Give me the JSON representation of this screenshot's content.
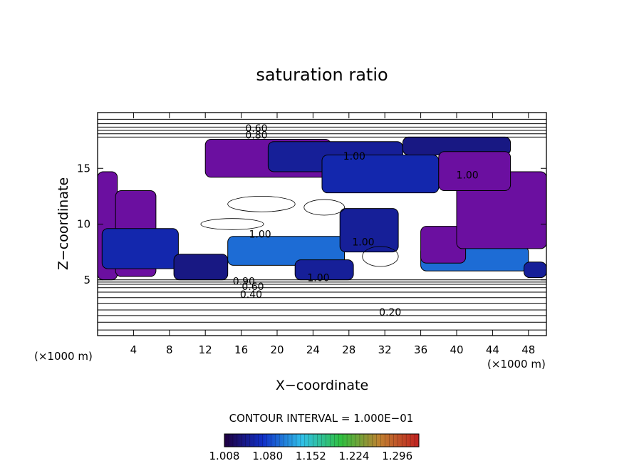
{
  "chart_data": {
    "type": "heatmap",
    "title": "saturation ratio",
    "xlabel": "X−coordinate",
    "ylabel": "Z−coordinate",
    "x_units": "(×1000 m)",
    "z_units": "(×1000 m)",
    "xlim": [
      0,
      50
    ],
    "ylim": [
      0,
      20
    ],
    "x_ticks": [
      4,
      8,
      12,
      16,
      20,
      24,
      28,
      32,
      36,
      40,
      44,
      48
    ],
    "y_ticks": [
      5,
      10,
      15
    ],
    "contour_interval_label": "CONTOUR INTERVAL = 1.000E−01",
    "colorbar": {
      "range": [
        1.008,
        1.332
      ],
      "tick_labels": [
        "1.008",
        "1.080",
        "1.152",
        "1.224",
        "1.296"
      ],
      "colors": [
        "#200040",
        "#1030c8",
        "#30c0e8",
        "#30c040",
        "#c08030",
        "#c02020"
      ]
    },
    "contour_labels": [
      {
        "text": "0.60",
        "x": 17.7,
        "z": 18.6
      },
      {
        "text": "0.80",
        "x": 17.7,
        "z": 18.0
      },
      {
        "text": "1.00",
        "x": 28.6,
        "z": 16.1
      },
      {
        "text": "1.00",
        "x": 41.2,
        "z": 14.4
      },
      {
        "text": "1.00",
        "x": 18.1,
        "z": 9.1
      },
      {
        "text": "1.00",
        "x": 29.6,
        "z": 8.4
      },
      {
        "text": "1.00",
        "x": 24.6,
        "z": 5.2
      },
      {
        "text": "0.90",
        "x": 16.3,
        "z": 4.9
      },
      {
        "text": "0.60",
        "x": 17.3,
        "z": 4.4
      },
      {
        "text": "0.40",
        "x": 17.1,
        "z": 3.7
      },
      {
        "text": "0.20",
        "x": 32.6,
        "z": 2.1
      }
    ],
    "contour_lines_z": [
      0.5,
      1.2,
      1.8,
      2.3,
      2.9,
      3.4,
      3.9,
      4.3,
      4.6,
      4.8,
      5.0,
      17.8,
      18.1,
      18.4,
      18.7,
      19.0,
      19.4
    ],
    "supersaturated_regions": [
      {
        "x": [
          0.0,
          2.2
        ],
        "z": [
          5.0,
          14.7
        ],
        "value": 1.02
      },
      {
        "x": [
          2.0,
          6.5
        ],
        "z": [
          5.3,
          13.0
        ],
        "value": 1.02
      },
      {
        "x": [
          0.5,
          9.0
        ],
        "z": [
          6.0,
          9.6
        ],
        "value": 1.06
      },
      {
        "x": [
          8.5,
          14.5
        ],
        "z": [
          5.0,
          7.3
        ],
        "value": 1.04
      },
      {
        "x": [
          14.5,
          27.5
        ],
        "z": [
          6.3,
          8.9
        ],
        "value": 1.1
      },
      {
        "x": [
          22.0,
          28.5
        ],
        "z": [
          5.0,
          6.8
        ],
        "value": 1.05
      },
      {
        "x": [
          27.0,
          33.5
        ],
        "z": [
          7.5,
          11.4
        ],
        "value": 1.05
      },
      {
        "x": [
          36.0,
          48.0
        ],
        "z": [
          5.8,
          8.0
        ],
        "value": 1.1
      },
      {
        "x": [
          36.0,
          41.0
        ],
        "z": [
          6.5,
          9.8
        ],
        "value": 1.02
      },
      {
        "x": [
          40.0,
          50.0
        ],
        "z": [
          7.8,
          14.7
        ],
        "value": 1.02
      },
      {
        "x": [
          47.5,
          50.0
        ],
        "z": [
          5.2,
          6.6
        ],
        "value": 1.05
      },
      {
        "x": [
          12.0,
          26.0
        ],
        "z": [
          14.2,
          17.6
        ],
        "value": 1.02
      },
      {
        "x": [
          19.0,
          34.0
        ],
        "z": [
          14.7,
          17.4
        ],
        "value": 1.05
      },
      {
        "x": [
          25.0,
          38.0
        ],
        "z": [
          12.8,
          16.2
        ],
        "value": 1.06
      },
      {
        "x": [
          34.0,
          46.0
        ],
        "z": [
          16.2,
          17.8
        ],
        "value": 1.04
      },
      {
        "x": [
          38.0,
          46.0
        ],
        "z": [
          13.0,
          16.5
        ],
        "value": 1.02
      }
    ],
    "subsaturated_contour_lines": [
      {
        "x": [
          14.5,
          22.0
        ],
        "z": [
          11.1,
          12.5
        ]
      },
      {
        "x": [
          23.0,
          27.5
        ],
        "z": [
          10.8,
          12.2
        ]
      },
      {
        "x": [
          11.5,
          18.5
        ],
        "z": [
          9.5,
          10.5
        ]
      },
      {
        "x": [
          29.5,
          33.5
        ],
        "z": [
          6.2,
          8.0
        ]
      }
    ]
  }
}
